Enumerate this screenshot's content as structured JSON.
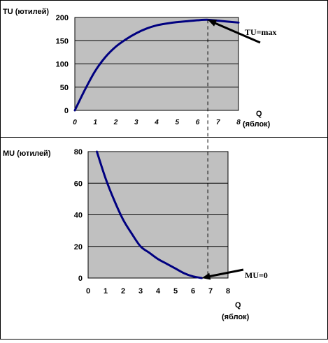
{
  "chart_data": [
    {
      "type": "line",
      "ylabel": "TU (ютилей)",
      "xlabel_line1": "Q",
      "xlabel_line2": "(яблок)",
      "xlim": [
        0,
        8
      ],
      "ylim": [
        0,
        200
      ],
      "x_ticks": [
        "0",
        "1",
        "2",
        "3",
        "4",
        "5",
        "6",
        "7",
        "8"
      ],
      "y_ticks": [
        "0",
        "50",
        "100",
        "150",
        "200"
      ],
      "grid": "horizontal",
      "plot_background": "#c0c0c0",
      "line_color": "#000080",
      "annotation": "TU=max",
      "annotation_point": [
        6.5,
        195
      ],
      "series": [
        {
          "x": [
            0,
            0.5,
            1,
            1.5,
            2,
            2.5,
            3,
            3.5,
            4,
            4.5,
            5,
            5.5,
            6,
            6.5,
            7,
            7.5,
            8
          ],
          "values": [
            0,
            45,
            85,
            115,
            137,
            153,
            166,
            176,
            183,
            187,
            190,
            192,
            194,
            195,
            193,
            191,
            189
          ]
        }
      ]
    },
    {
      "type": "line",
      "ylabel": "MU (ютилей)",
      "xlabel_line1": "Q",
      "xlabel_line2": "(яблок)",
      "xlim": [
        0,
        8
      ],
      "ylim": [
        0,
        80
      ],
      "x_ticks": [
        "0",
        "1",
        "2",
        "3",
        "4",
        "5",
        "6",
        "7",
        "8"
      ],
      "y_ticks": [
        "0",
        "20",
        "40",
        "60",
        "80"
      ],
      "grid": "horizontal",
      "plot_background": "#c0c0c0",
      "line_color": "#000080",
      "annotation": "MU=0",
      "annotation_point": [
        6.5,
        0
      ],
      "series": [
        {
          "x": [
            0.5,
            1,
            1.5,
            2,
            2.5,
            3,
            3.5,
            4,
            4.5,
            5,
            5.5,
            6,
            6.5
          ],
          "values": [
            80,
            63,
            49,
            37,
            28,
            20,
            16,
            12,
            9,
            6,
            3,
            1,
            0
          ]
        }
      ]
    }
  ]
}
